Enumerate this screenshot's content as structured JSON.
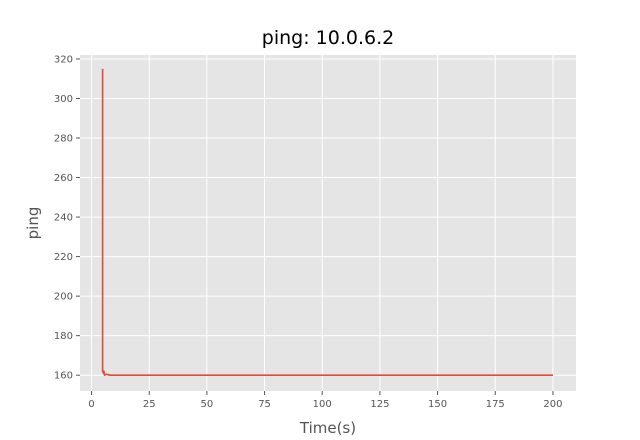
{
  "chart_data": {
    "type": "line",
    "title": "ping: 10.0.6.2",
    "xlabel": "Time(s)",
    "ylabel": "ping",
    "xlim": [
      -5,
      210
    ],
    "ylim": [
      152,
      322
    ],
    "xticks": [
      0,
      25,
      50,
      75,
      100,
      125,
      150,
      175,
      200
    ],
    "yticks": [
      160,
      180,
      200,
      220,
      240,
      260,
      280,
      300,
      320
    ],
    "grid": true,
    "colors": {
      "background": "#e5e5e5",
      "grid": "#ffffff",
      "line": "#e24a33",
      "tick": "#555555"
    },
    "series": [
      {
        "x": [
          4.8,
          4.8,
          5.2,
          5.4,
          5.6,
          6.5,
          8,
          200
        ],
        "values": [
          315,
          162,
          161,
          162,
          160,
          160.5,
          160,
          160
        ]
      }
    ]
  }
}
